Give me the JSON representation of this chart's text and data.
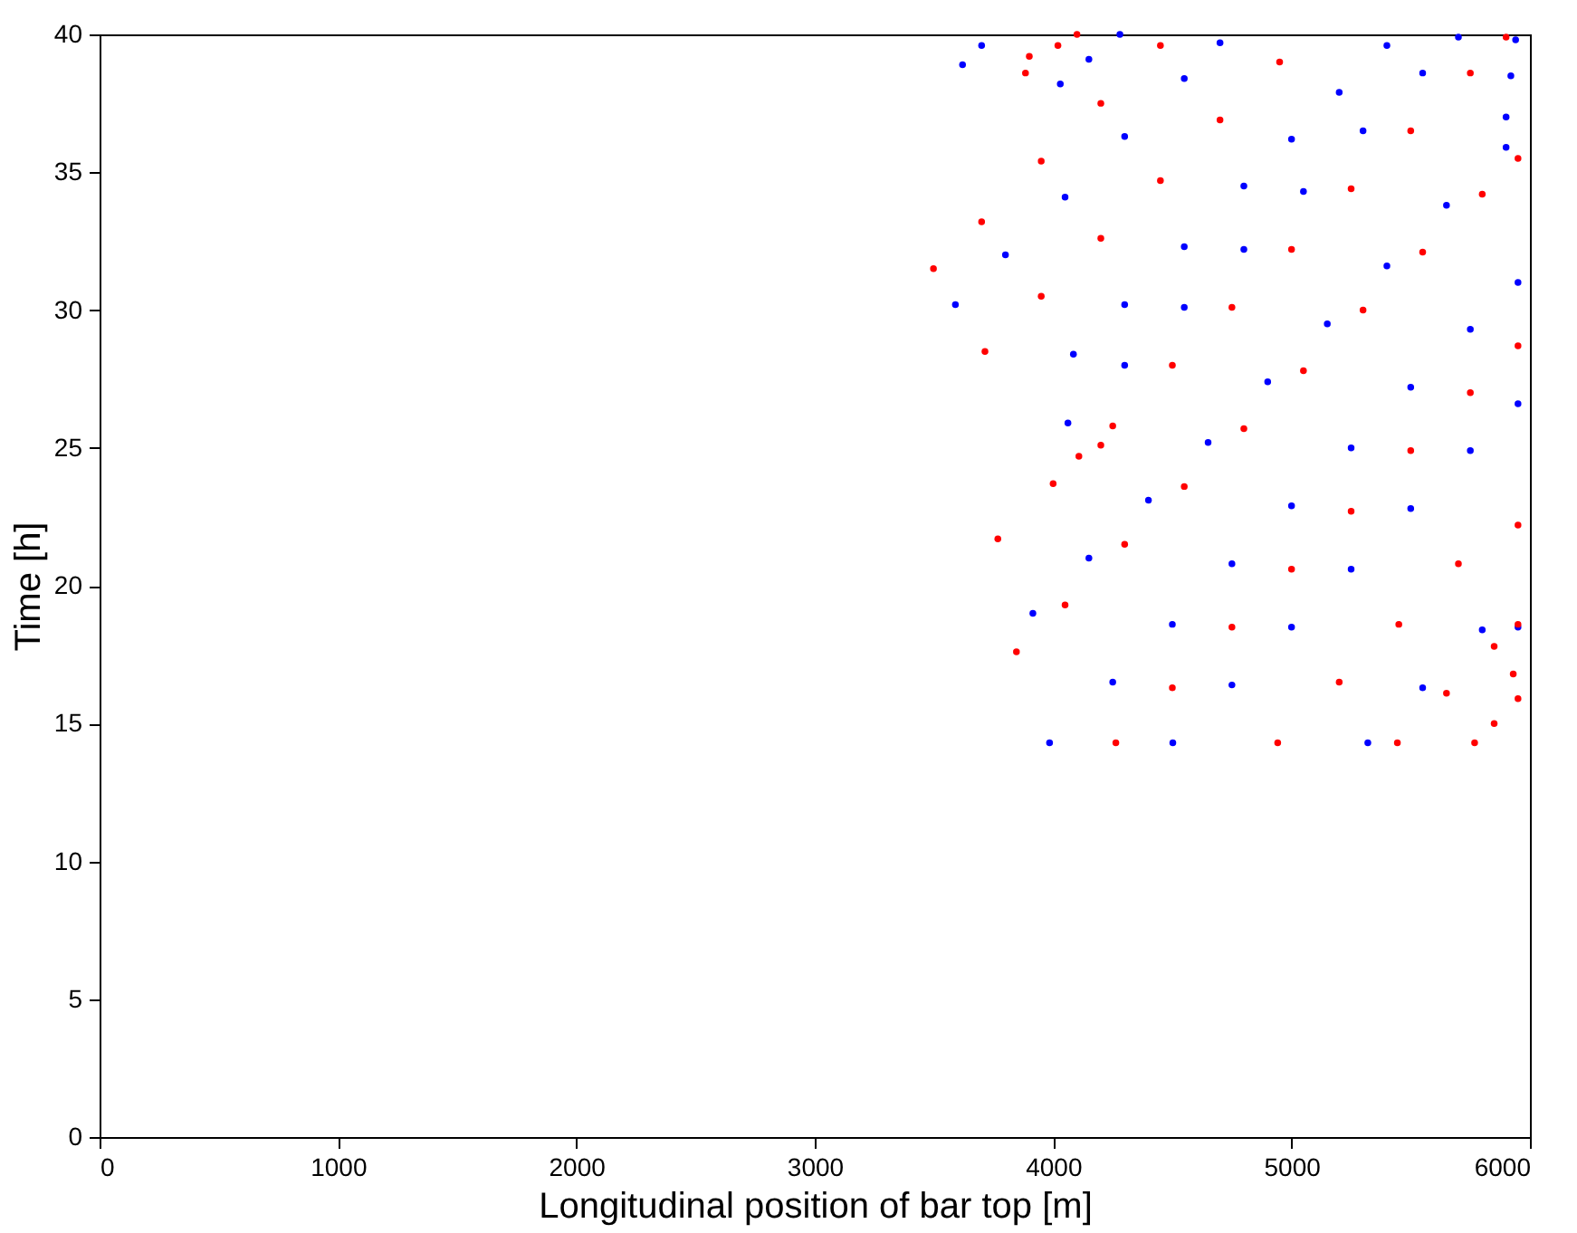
{
  "chart_data": {
    "type": "scatter",
    "xlabel": "Longitudinal position of bar top [m]",
    "ylabel": "Time [h]",
    "xlim": [
      0,
      6000
    ],
    "ylim": [
      0,
      40
    ],
    "xticks": [
      0,
      1000,
      2000,
      3000,
      4000,
      5000,
      6000
    ],
    "yticks": [
      0,
      5,
      10,
      15,
      20,
      25,
      30,
      35,
      40
    ],
    "grid": false,
    "marker": "circle",
    "series": [
      {
        "color": "#0000ff",
        "x": [
          3985,
          4250,
          4500,
          4750,
          5000,
          5250,
          5500,
          5750,
          5950,
          4502,
          4750,
          5000,
          5250,
          5500,
          5750,
          5950,
          5320,
          5550,
          5800,
          5950,
          3915,
          4150,
          4400,
          4650,
          4900,
          5150,
          5400,
          5650,
          5900,
          4062,
          4300,
          4550,
          4800,
          5050,
          5300,
          5550,
          5700,
          4085,
          4300,
          4550,
          4800,
          5000,
          5200,
          5400,
          3590,
          3800,
          4050,
          4300,
          4550,
          4700,
          3620,
          3700,
          4030,
          4150,
          4280,
          5900,
          5920,
          5940
        ],
        "values": [
          14.3,
          16.5,
          18.6,
          20.8,
          22.9,
          25.0,
          27.2,
          29.3,
          31.0,
          14.3,
          16.4,
          18.5,
          20.6,
          22.8,
          24.9,
          26.6,
          14.3,
          16.3,
          18.4,
          18.5,
          19.0,
          21.0,
          23.1,
          25.2,
          27.4,
          29.5,
          31.6,
          33.8,
          35.9,
          25.9,
          28.0,
          30.1,
          32.2,
          34.3,
          36.5,
          38.6,
          39.9,
          28.4,
          30.2,
          32.3,
          34.5,
          36.2,
          37.9,
          39.6,
          30.2,
          32.0,
          34.1,
          36.3,
          38.4,
          39.7,
          38.9,
          39.6,
          38.2,
          39.1,
          40.0,
          37.0,
          38.5,
          39.8
        ]
      },
      {
        "color": "#ff0000",
        "x": [
          4263,
          4500,
          4750,
          5000,
          5250,
          5500,
          5750,
          5950,
          4942,
          5200,
          5450,
          5700,
          5950,
          5444,
          5650,
          5850,
          5950,
          5768,
          5850,
          5950,
          5930,
          3846,
          4050,
          4300,
          4550,
          4800,
          5050,
          5300,
          5550,
          5800,
          5950,
          3768,
          4000,
          4250,
          4500,
          4750,
          5000,
          5250,
          5500,
          5750,
          5900,
          4108,
          4200,
          3714,
          3950,
          4200,
          4450,
          4700,
          4950,
          3498,
          3700,
          3950,
          4200,
          4450,
          3884,
          3900,
          4020,
          4100
        ],
        "values": [
          14.3,
          16.3,
          18.5,
          20.6,
          22.7,
          24.9,
          27.0,
          28.7,
          14.3,
          16.5,
          18.6,
          20.8,
          22.2,
          14.3,
          16.1,
          17.8,
          18.6,
          14.3,
          15.0,
          15.9,
          16.8,
          17.6,
          19.3,
          21.5,
          23.6,
          25.7,
          27.8,
          30.0,
          32.1,
          34.2,
          35.5,
          21.7,
          23.7,
          25.8,
          28.0,
          30.1,
          32.2,
          34.4,
          36.5,
          38.6,
          39.9,
          24.7,
          25.1,
          28.5,
          30.5,
          32.6,
          34.7,
          36.9,
          39.0,
          31.5,
          33.2,
          35.4,
          37.5,
          39.6,
          38.6,
          39.2,
          39.6,
          40.0
        ]
      }
    ]
  }
}
